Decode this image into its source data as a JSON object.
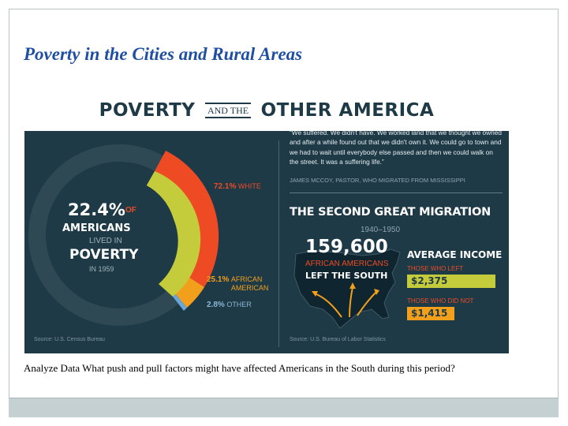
{
  "slide": {
    "title": "Poverty in the Cities and Rural Areas",
    "caption": "Analyze Data What push and pull factors might have affected Americans in the South during this period?"
  },
  "infographic": {
    "title_left": "POVERTY",
    "title_joiner": "AND THE",
    "title_right": "OTHER AMERICA",
    "poverty": {
      "percent": "22.4%",
      "of": "OF",
      "americans": "AMERICANS",
      "lived_in": "LIVED IN",
      "poverty_word": "POVERTY",
      "year": "IN 1959",
      "breakdown": [
        {
          "pct": "72.1%",
          "label": "WHITE",
          "share": 72.1,
          "color": "#ee4b24"
        },
        {
          "pct": "25.1%",
          "label": "AFRICAN AMERICAN",
          "share": 25.1,
          "color": "#f2a01c"
        },
        {
          "pct": "2.8%",
          "label": "OTHER",
          "share": 2.8,
          "color": "#6aa7d8"
        }
      ],
      "source": "Source: U.S. Census Bureau"
    },
    "quote": {
      "text": "“We suffered. We didn't have. We worked land that we thought we owned and after a while found out that we didn't own it. We could go to town and we had to wait until everybody else passed and then we could walk on the street. It was a suffering life.”",
      "attribution": "JAMES MCCOY, PASTOR, WHO MIGRATED FROM MISSISSIPPI"
    },
    "migration": {
      "title": "THE SECOND GREAT MIGRATION",
      "years": "1940–1950",
      "count": "159,600",
      "desc": "AFRICAN AMERICANS",
      "left_south": "LEFT THE SOUTH",
      "income_title": "AVERAGE INCOME",
      "those_left_label": "THOSE WHO LEFT",
      "those_left_value": "$2,375",
      "those_stayed_label": "THOSE WHO DID NOT",
      "those_stayed_value": "$1,415",
      "source": "Source: U.S. Bureau of Labor Statistics"
    }
  },
  "colors": {
    "title_blue": "#1f4fa3",
    "navy": "#1e3a47",
    "red": "#ee4b24",
    "orange": "#f2a01c",
    "lime": "#c5cc3b",
    "light_blue": "#6aa7d8"
  }
}
